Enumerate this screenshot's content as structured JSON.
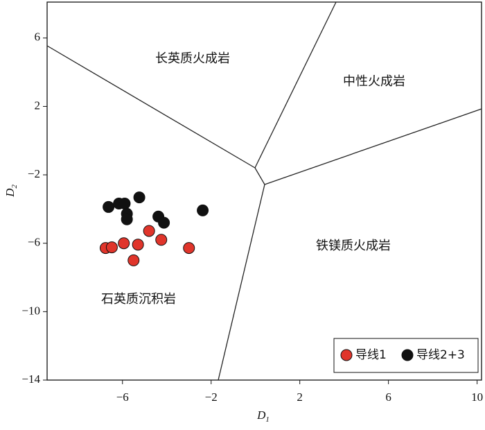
{
  "chart_data": {
    "type": "scatter",
    "xlabel": {
      "main": "D",
      "sub": "1"
    },
    "ylabel": {
      "main": "D",
      "sub": "2"
    },
    "xlim": [
      -9.4,
      10.2
    ],
    "ylim": [
      -14,
      8.1
    ],
    "xticks": [
      {
        "value": -6,
        "label": "−6"
      },
      {
        "value": -2,
        "label": "−2"
      },
      2,
      6,
      10
    ],
    "yticks": [
      6,
      2,
      {
        "value": -2,
        "label": "−2"
      },
      {
        "value": -6,
        "label": "−6"
      },
      {
        "value": -10,
        "label": "−10"
      },
      {
        "value": -14,
        "label": "−14"
      }
    ],
    "annotations": [
      "长英质火成岩",
      "中性火成岩",
      "铁镁质火成岩",
      "石英质沉积岩"
    ],
    "legend": "lower right",
    "series": [
      {
        "name": "导线1",
        "color": "#e0352b",
        "x": [
          -6.76,
          -6.48,
          -5.94,
          -5.3,
          -4.8,
          -4.25,
          -5.5,
          -3.0
        ],
        "values": [
          -6.28,
          -6.24,
          -6.0,
          -6.08,
          -5.28,
          -5.8,
          -7.0,
          -6.28
        ]
      },
      {
        "name": "导线2+3",
        "color": "#111111",
        "x": [
          -6.63,
          -6.16,
          -5.9,
          -5.8,
          -5.8,
          -5.24,
          -4.38,
          -4.13,
          -2.38
        ],
        "values": [
          -3.88,
          -3.68,
          -3.68,
          -4.28,
          -4.6,
          -3.32,
          -4.44,
          -4.8,
          -4.08
        ]
      }
    ]
  }
}
